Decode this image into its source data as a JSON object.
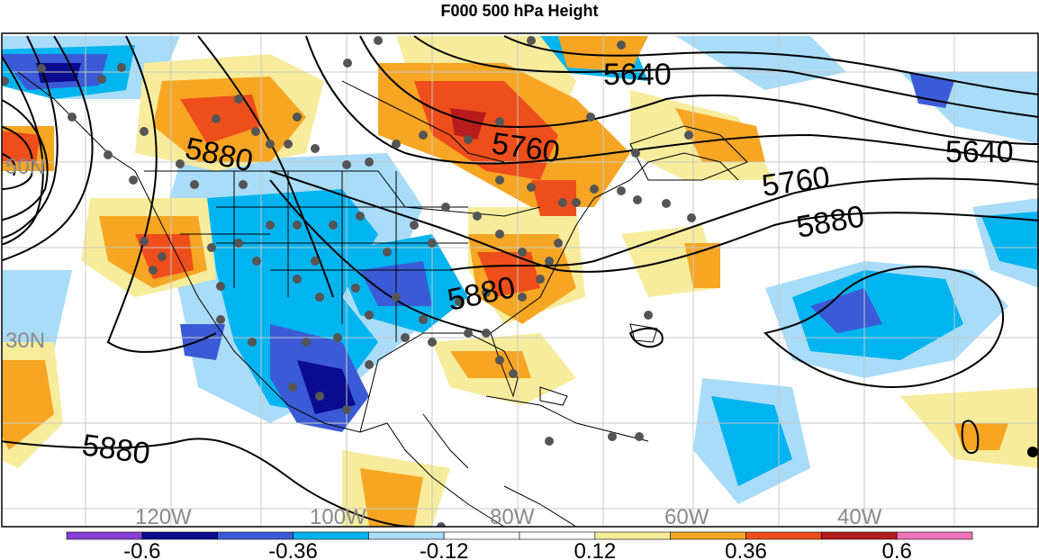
{
  "title": "F000 500 hPa Height",
  "map": {
    "lat_labels": [
      "50N",
      "30N"
    ],
    "lon_labels": [
      "120W",
      "100W",
      "80W",
      "60W",
      "40W"
    ],
    "contour_labels": [
      "5640",
      "5640",
      "5760",
      "5760",
      "5880",
      "5880",
      "5880",
      "5880"
    ]
  },
  "colorbar": {
    "colors": [
      "#8b3fd6",
      "#0b0b8f",
      "#3b5bd6",
      "#00b4f0",
      "#a8dcf8",
      "#ffffff",
      "#ffffff",
      "#f7ec9c",
      "#f6a623",
      "#ee4e1b",
      "#b71c1c",
      "#f272b8"
    ],
    "tick_labels": [
      "-0.6",
      "-0.36",
      "-0.12",
      "0.12",
      "0.36",
      "0.6"
    ]
  }
}
